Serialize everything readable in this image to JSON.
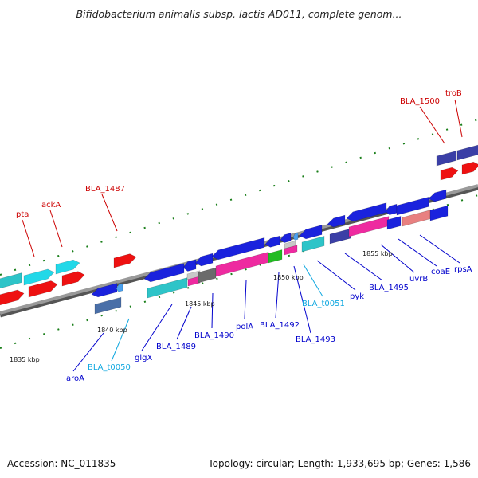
{
  "title": "Bifidobacterium animalis subsp. lactis AD011, complete genom...",
  "footer": {
    "accession": "Accession: NC_011835",
    "stats": "Topology: circular; Length: 1,933,695 bp; Genes: 1,586"
  },
  "colors": {
    "backbone": "#8a8a8a",
    "tick": "#1a7f1a",
    "label_red": "#cc0000",
    "label_blue": "#0000cc",
    "label_cyan": "#11a8e0"
  },
  "ticks": [
    "1835 kbp",
    "1840 kbp",
    "1845 kbp",
    "1850 kbp",
    "1855 kbp"
  ],
  "gene_labels": [
    {
      "text": "pta",
      "color": "red"
    },
    {
      "text": "ackA",
      "color": "red"
    },
    {
      "text": "BLA_1487",
      "color": "red"
    },
    {
      "text": "BLA_1500",
      "color": "red"
    },
    {
      "text": "troB",
      "color": "red"
    },
    {
      "text": "aroA",
      "color": "blue"
    },
    {
      "text": "BLA_t0050",
      "color": "cyan"
    },
    {
      "text": "glgX",
      "color": "blue"
    },
    {
      "text": "BLA_1489",
      "color": "blue"
    },
    {
      "text": "BLA_1490",
      "color": "blue"
    },
    {
      "text": "polA",
      "color": "blue"
    },
    {
      "text": "BLA_1492",
      "color": "blue"
    },
    {
      "text": "BLA_1493",
      "color": "blue"
    },
    {
      "text": "BLA_t0051",
      "color": "cyan"
    },
    {
      "text": "pyk",
      "color": "blue"
    },
    {
      "text": "BLA_1495",
      "color": "blue"
    },
    {
      "text": "uvrB",
      "color": "blue"
    },
    {
      "text": "coaE",
      "color": "blue"
    },
    {
      "text": "rpsA",
      "color": "blue"
    }
  ]
}
